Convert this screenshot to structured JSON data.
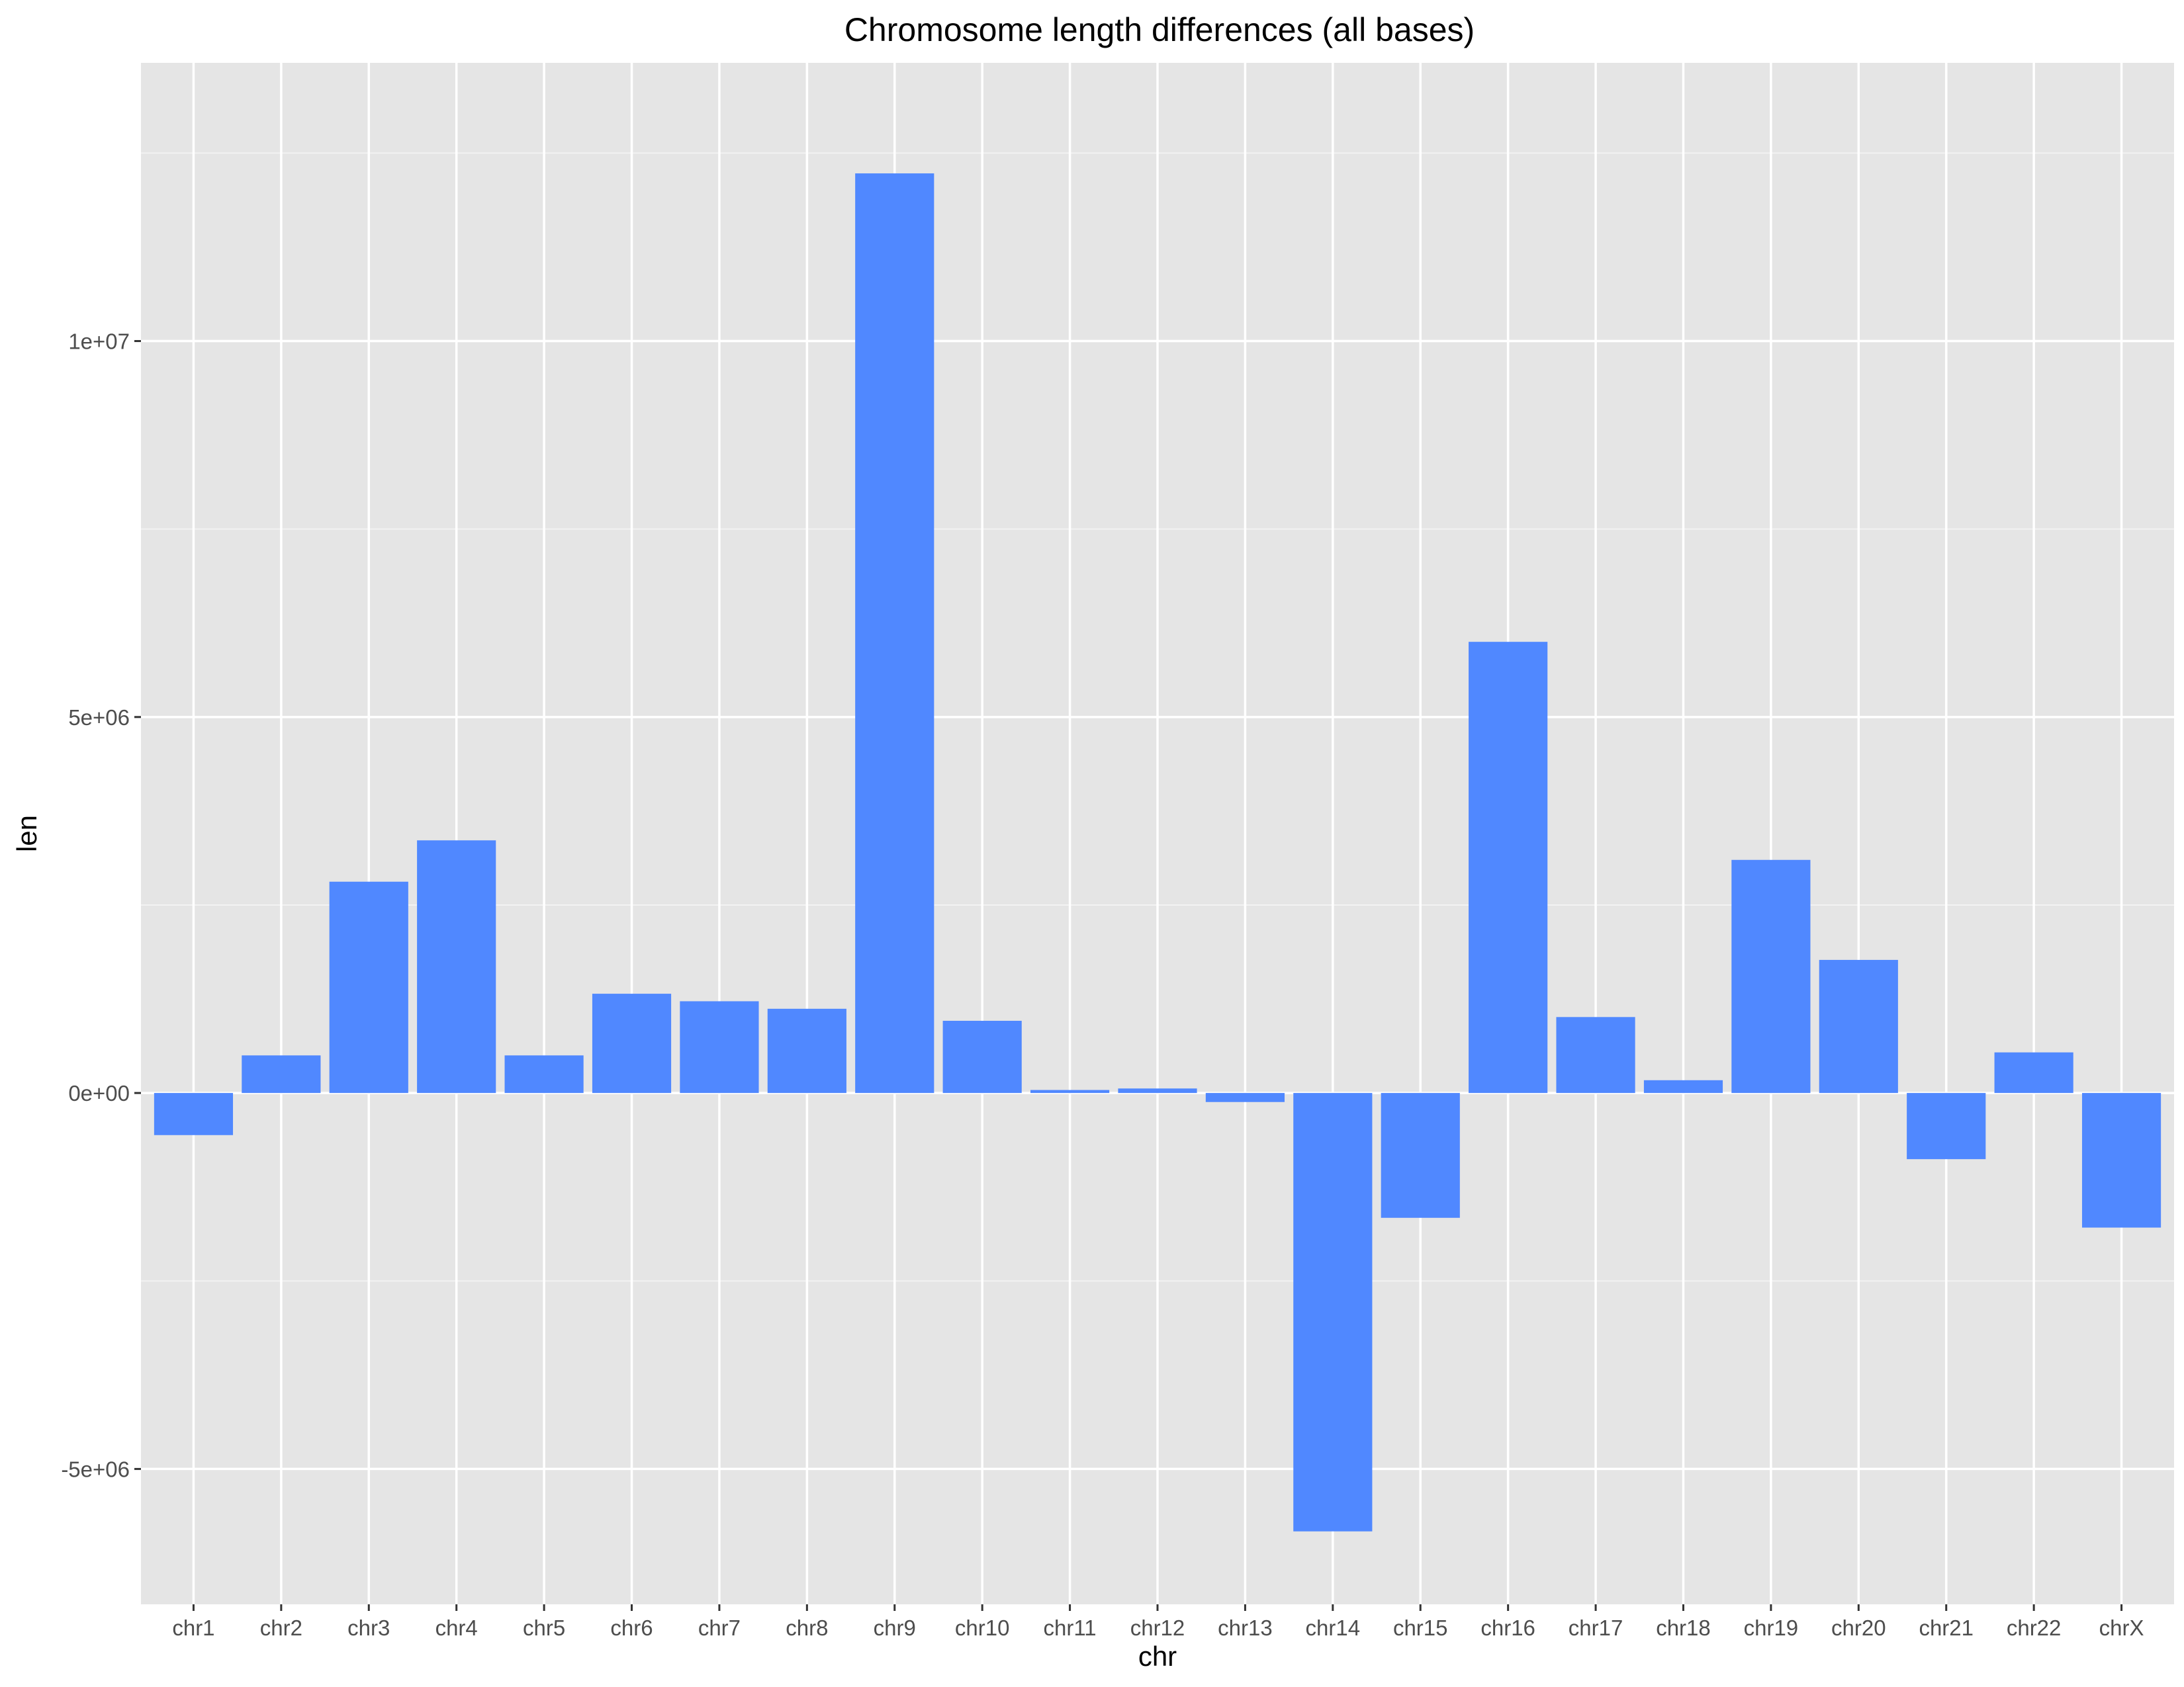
{
  "chart_data": {
    "type": "bar",
    "title": "Chromosome length differences (all bases)",
    "xlabel": "chr",
    "ylabel": "len",
    "categories": [
      "chr1",
      "chr2",
      "chr3",
      "chr4",
      "chr5",
      "chr6",
      "chr7",
      "chr8",
      "chr9",
      "chr10",
      "chr11",
      "chr12",
      "chr13",
      "chr14",
      "chr15",
      "chr16",
      "chr17",
      "chr18",
      "chr19",
      "chr20",
      "chr21",
      "chr22",
      "chrX"
    ],
    "values": [
      -560000,
      500000,
      2810000,
      3360000,
      500000,
      1320000,
      1220000,
      1120000,
      12230000,
      960000,
      40000,
      60000,
      -120000,
      -5830000,
      -1660000,
      6000000,
      1010000,
      170000,
      3100000,
      1770000,
      -880000,
      540000,
      -1790000
    ],
    "y_ticks": [
      -5000000,
      0,
      5000000,
      10000000
    ],
    "y_tick_labels": [
      "-5e+06",
      "0e+00",
      "5e+06",
      "1e+07"
    ],
    "ylim": [
      -6800000,
      13700000
    ],
    "grid": true,
    "legend": "none",
    "colors": {
      "bar": "#5088ff",
      "panel_background": "#e5e5e5",
      "grid_major": "#ffffff",
      "grid_minor": "#f2f2f2",
      "tick_text": "#4d4d4d"
    }
  }
}
